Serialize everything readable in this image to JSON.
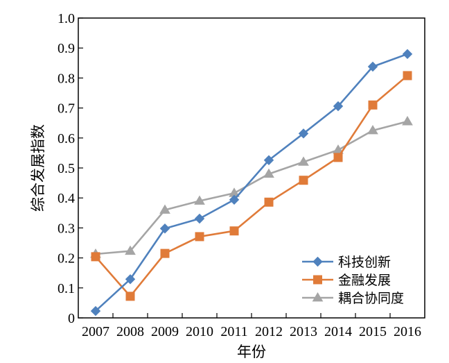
{
  "chart_data": {
    "type": "line",
    "xlabel": "年份",
    "ylabel": "综合发展指数",
    "categories": [
      "2007",
      "2008",
      "2009",
      "2010",
      "2011",
      "2012",
      "2013",
      "2014",
      "2015",
      "2016"
    ],
    "ylim": [
      0,
      1.0
    ],
    "yticks": [
      "0",
      "0.1",
      "0.2",
      "0.3",
      "0.4",
      "0.5",
      "0.6",
      "0.7",
      "0.8",
      "0.9",
      "1.0"
    ],
    "grid": false,
    "legend_position": "bottom-right",
    "series": [
      {
        "name": "科技创新",
        "color": "#4f81bd",
        "marker": "diamond",
        "values": [
          0.023,
          0.129,
          0.298,
          0.331,
          0.394,
          0.526,
          0.615,
          0.706,
          0.838,
          0.88
        ]
      },
      {
        "name": "金融发展",
        "color": "#e07b39",
        "marker": "square",
        "values": [
          0.204,
          0.072,
          0.215,
          0.271,
          0.29,
          0.386,
          0.459,
          0.535,
          0.71,
          0.808
        ]
      },
      {
        "name": "耦合协同度",
        "color": "#a5a5a5",
        "marker": "triangle",
        "values": [
          0.213,
          0.223,
          0.36,
          0.39,
          0.416,
          0.48,
          0.52,
          0.56,
          0.625,
          0.655
        ]
      }
    ]
  }
}
